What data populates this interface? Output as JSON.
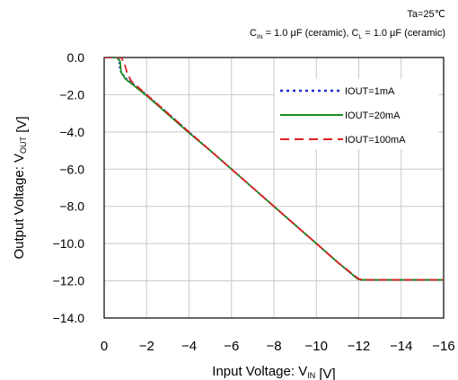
{
  "conditions": {
    "line1": "Ta=25℃",
    "line2": "C_IN = 1.0 μF (ceramic), C_L = 1.0 μF (ceramic)"
  },
  "chart_data": {
    "type": "line",
    "xlabel": "Input Voltage: V_IN [V]",
    "ylabel": "Output Voltage: V_OUT [V]",
    "xlim": [
      0,
      -16
    ],
    "ylim": [
      -14,
      0
    ],
    "x_ticks": [
      "0",
      "−2",
      "−4",
      "−6",
      "−8",
      "−10",
      "−12",
      "−14",
      "−16"
    ],
    "y_ticks": [
      "0.0",
      "−2.0",
      "−4.0",
      "−6.0",
      "−8.0",
      "−10.0",
      "−12.0",
      "−14.0"
    ],
    "grid": true,
    "legend_position": "top-right",
    "series": [
      {
        "name": "IOUT=1mA",
        "color": "#1f2fd0",
        "style": "dotted",
        "x": [
          0,
          -0.5,
          -0.7,
          -0.75,
          -1.0,
          -2.0,
          -3.0,
          -4.0,
          -5.0,
          -6.0,
          -7.0,
          -8.0,
          -9.0,
          -10.0,
          -11.0,
          -11.9,
          -12.0,
          -14.0,
          -16.0
        ],
        "y": [
          0,
          0,
          -0.1,
          -0.7,
          -1.1,
          -2.0,
          -3.0,
          -4.0,
          -5.0,
          -6.0,
          -7.0,
          -8.0,
          -9.0,
          -10.0,
          -11.0,
          -11.85,
          -11.95,
          -11.95,
          -11.95
        ]
      },
      {
        "name": "IOUT=20mA",
        "color": "#1a8a1a",
        "style": "solid",
        "x": [
          0,
          -0.6,
          -0.75,
          -0.8,
          -1.0,
          -2.0,
          -3.0,
          -4.0,
          -5.0,
          -6.0,
          -7.0,
          -8.0,
          -9.0,
          -10.0,
          -11.0,
          -11.95,
          -12.1,
          -14.0,
          -16.0
        ],
        "y": [
          0,
          0,
          -0.2,
          -0.8,
          -1.15,
          -2.05,
          -3.05,
          -4.05,
          -5.0,
          -6.0,
          -7.0,
          -8.0,
          -9.0,
          -10.0,
          -11.0,
          -11.9,
          -11.95,
          -11.95,
          -11.95
        ]
      },
      {
        "name": "IOUT=100mA",
        "color": "#e02020",
        "style": "dashed",
        "x": [
          0,
          -0.8,
          -0.95,
          -1.1,
          -1.3,
          -2.0,
          -3.0,
          -4.0,
          -5.0,
          -6.0,
          -7.0,
          -8.0,
          -9.0,
          -10.0,
          -11.0,
          -12.0,
          -12.2,
          -14.0,
          -16.0
        ],
        "y": [
          0,
          0,
          -0.3,
          -0.9,
          -1.3,
          -2.0,
          -3.0,
          -4.0,
          -5.0,
          -6.0,
          -7.0,
          -8.0,
          -9.0,
          -10.0,
          -11.0,
          -11.9,
          -11.95,
          -11.95,
          -11.95
        ]
      }
    ]
  }
}
